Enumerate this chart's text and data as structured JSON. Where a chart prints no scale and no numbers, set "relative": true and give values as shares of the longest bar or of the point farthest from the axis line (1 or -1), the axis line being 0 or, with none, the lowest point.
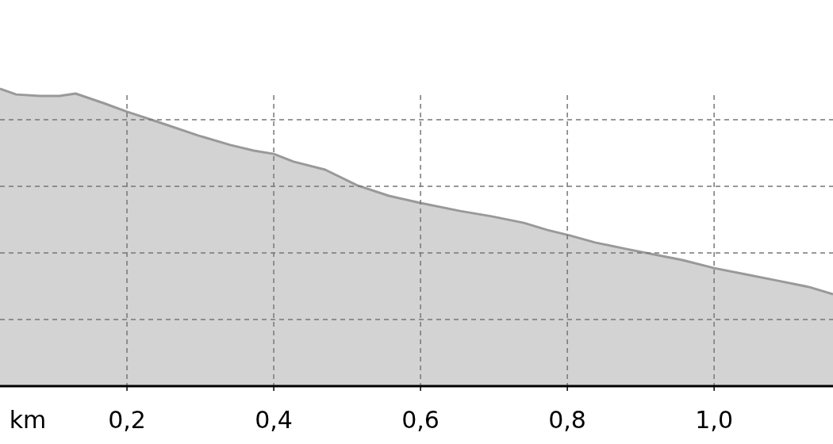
{
  "chart_data": {
    "type": "area",
    "relative": true,
    "xlabel": "km",
    "grid": true,
    "color": "#d3d3d3",
    "x": [
      0.027,
      0.049,
      0.081,
      0.108,
      0.13,
      0.168,
      0.2,
      0.243,
      0.297,
      0.341,
      0.373,
      0.4,
      0.427,
      0.47,
      0.514,
      0.557,
      0.6,
      0.654,
      0.697,
      0.741,
      0.773,
      0.803,
      0.838,
      0.881,
      0.924,
      0.957,
      1.0,
      1.043,
      1.086,
      1.13,
      1.162
    ],
    "values": [
      1.0,
      0.981,
      0.976,
      0.976,
      0.984,
      0.952,
      0.923,
      0.888,
      0.843,
      0.811,
      0.792,
      0.781,
      0.755,
      0.728,
      0.675,
      0.64,
      0.616,
      0.589,
      0.571,
      0.549,
      0.525,
      0.507,
      0.483,
      0.461,
      0.44,
      0.424,
      0.397,
      0.376,
      0.355,
      0.333,
      0.309
    ],
    "xlim": [
      0.027,
      1.162
    ],
    "xticks": [
      {
        "value": 0.2,
        "label": "0,2"
      },
      {
        "value": 0.4,
        "label": "0,4"
      },
      {
        "value": 0.6,
        "label": "0,6"
      },
      {
        "value": 0.8,
        "label": "0,8"
      },
      {
        "value": 1.0,
        "label": "1,0"
      }
    ]
  }
}
